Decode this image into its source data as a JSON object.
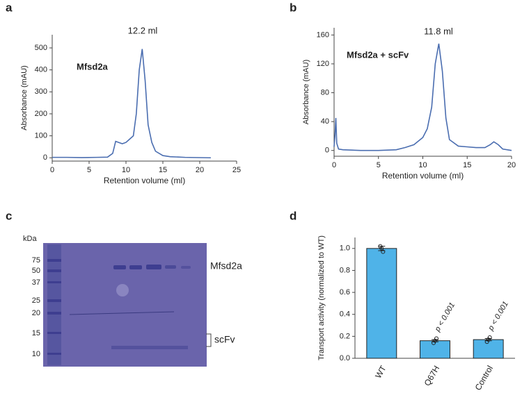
{
  "chart_data": [
    {
      "type": "line",
      "panel_label": "a",
      "xlabel": "Retention volume (ml)",
      "ylabel": "Absorbance (mAU)",
      "annotations": [
        "12.2  ml",
        "Mfsd2a"
      ],
      "x": [
        0,
        2,
        4,
        6,
        7.5,
        8.2,
        8.6,
        9,
        9.5,
        10,
        10.5,
        11,
        11.4,
        11.8,
        12.2,
        12.6,
        13,
        13.5,
        14,
        15,
        16,
        18,
        21.5
      ],
      "series": [
        {
          "color": "#4a6db0",
          "values": [
            2,
            2,
            1,
            2,
            3,
            20,
            75,
            70,
            64,
            70,
            85,
            100,
            200,
            400,
            495,
            350,
            150,
            70,
            30,
            10,
            5,
            2,
            0
          ]
        }
      ],
      "xlim": [
        0,
        25
      ],
      "ylim": [
        -15,
        560
      ],
      "xticks": [
        0,
        5,
        10,
        15,
        20,
        25
      ],
      "yticks": [
        0,
        100,
        200,
        300,
        400,
        500
      ]
    },
    {
      "type": "line",
      "panel_label": "b",
      "xlabel": "Retention volume (ml)",
      "ylabel": "Absorbance (mAU)",
      "annotations": [
        "11.8  ml",
        "Mfsd2a + scFv"
      ],
      "x": [
        0,
        0.1,
        0.2,
        0.3,
        0.5,
        1,
        3,
        5,
        7,
        8,
        9,
        10,
        10.5,
        11,
        11.4,
        11.8,
        12.2,
        12.6,
        13,
        14,
        15,
        16,
        17,
        17.6,
        18,
        18.5,
        19,
        20
      ],
      "series": [
        {
          "color": "#4a6db0",
          "values": [
            5,
            20,
            45,
            10,
            2,
            1,
            0,
            0,
            1,
            4,
            8,
            18,
            30,
            60,
            120,
            148,
            110,
            45,
            15,
            6,
            5,
            4,
            4,
            8,
            12,
            8,
            2,
            0
          ]
        }
      ],
      "xlim": [
        0,
        20
      ],
      "ylim": [
        -8,
        170
      ],
      "xticks": [
        0,
        5,
        10,
        15,
        20
      ],
      "yticks": [
        0,
        40,
        80,
        120,
        160
      ]
    },
    {
      "type": "bar",
      "panel_label": "d",
      "ylabel": "Transport activity (normalized to WT)",
      "categories": [
        "WT",
        "Q67H",
        "Control"
      ],
      "values": [
        1.0,
        0.16,
        0.17
      ],
      "errors": [
        0.02,
        0.01,
        0.01
      ],
      "points": [
        [
          1.02,
          1.0,
          0.97
        ],
        [
          0.14,
          0.16,
          0.18
        ],
        [
          0.15,
          0.17,
          0.19
        ]
      ],
      "annotations": [
        null,
        "p < 0.001",
        "p < 0.001"
      ],
      "color": "#4fb3e8",
      "ylim": [
        0,
        1.1
      ],
      "yticks": [
        {
          "value": 0,
          "label": "0.0"
        },
        0.2,
        0.4,
        0.6,
        0.8,
        {
          "value": 1,
          "label": "1.0"
        }
      ]
    }
  ],
  "gel": {
    "panel_label": "c",
    "unit": "kDa",
    "ladder": [
      75,
      50,
      37,
      25,
      20,
      15,
      10
    ],
    "bands": [
      "Mfsd2a",
      "scFv"
    ]
  }
}
